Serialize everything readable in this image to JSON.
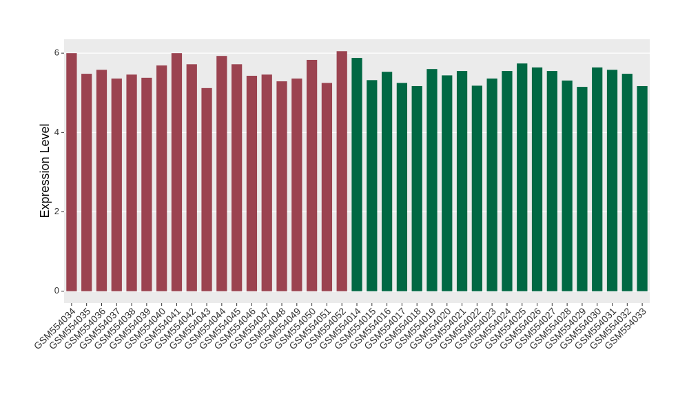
{
  "chart_data": {
    "type": "bar",
    "y_label": "Expression Level",
    "categories": [
      "GSM554034",
      "GSM554035",
      "GSM554036",
      "GSM554037",
      "GSM554038",
      "GSM554039",
      "GSM554040",
      "GSM554041",
      "GSM554042",
      "GSM554043",
      "GSM554044",
      "GSM554045",
      "GSM554046",
      "GSM554047",
      "GSM554048",
      "GSM554049",
      "GSM554050",
      "GSM554051",
      "GSM554052",
      "GSM554014",
      "GSM554015",
      "GSM554016",
      "GSM554017",
      "GSM554018",
      "GSM554019",
      "GSM554020",
      "GSM554021",
      "GSM554022",
      "GSM554023",
      "GSM554024",
      "GSM554025",
      "GSM554026",
      "GSM554027",
      "GSM554028",
      "GSM554029",
      "GSM554030",
      "GSM554031",
      "GSM554032",
      "GSM554033"
    ],
    "values": [
      6.0,
      5.48,
      5.58,
      5.36,
      5.46,
      5.38,
      5.69,
      6.0,
      5.72,
      5.12,
      5.93,
      5.72,
      5.43,
      5.46,
      5.29,
      5.36,
      5.83,
      5.25,
      6.05,
      5.88,
      5.32,
      5.53,
      5.25,
      5.17,
      5.6,
      5.44,
      5.55,
      5.18,
      5.36,
      5.55,
      5.74,
      5.64,
      5.55,
      5.31,
      5.15,
      5.64,
      5.58,
      5.48,
      5.17
    ],
    "colors": [
      "#9b4350",
      "#9b4350",
      "#9b4350",
      "#9b4350",
      "#9b4350",
      "#9b4350",
      "#9b4350",
      "#9b4350",
      "#9b4350",
      "#9b4350",
      "#9b4350",
      "#9b4350",
      "#9b4350",
      "#9b4350",
      "#9b4350",
      "#9b4350",
      "#9b4350",
      "#9b4350",
      "#9b4350",
      "#006843",
      "#006843",
      "#006843",
      "#006843",
      "#006843",
      "#006843",
      "#006843",
      "#006843",
      "#006843",
      "#006843",
      "#006843",
      "#006843",
      "#006843",
      "#006843",
      "#006843",
      "#006843",
      "#006843",
      "#006843",
      "#006843",
      "#006843"
    ],
    "ylim": [
      -0.3,
      6.35
    ],
    "yticks": [
      0,
      2,
      4,
      6
    ],
    "grid": true
  }
}
